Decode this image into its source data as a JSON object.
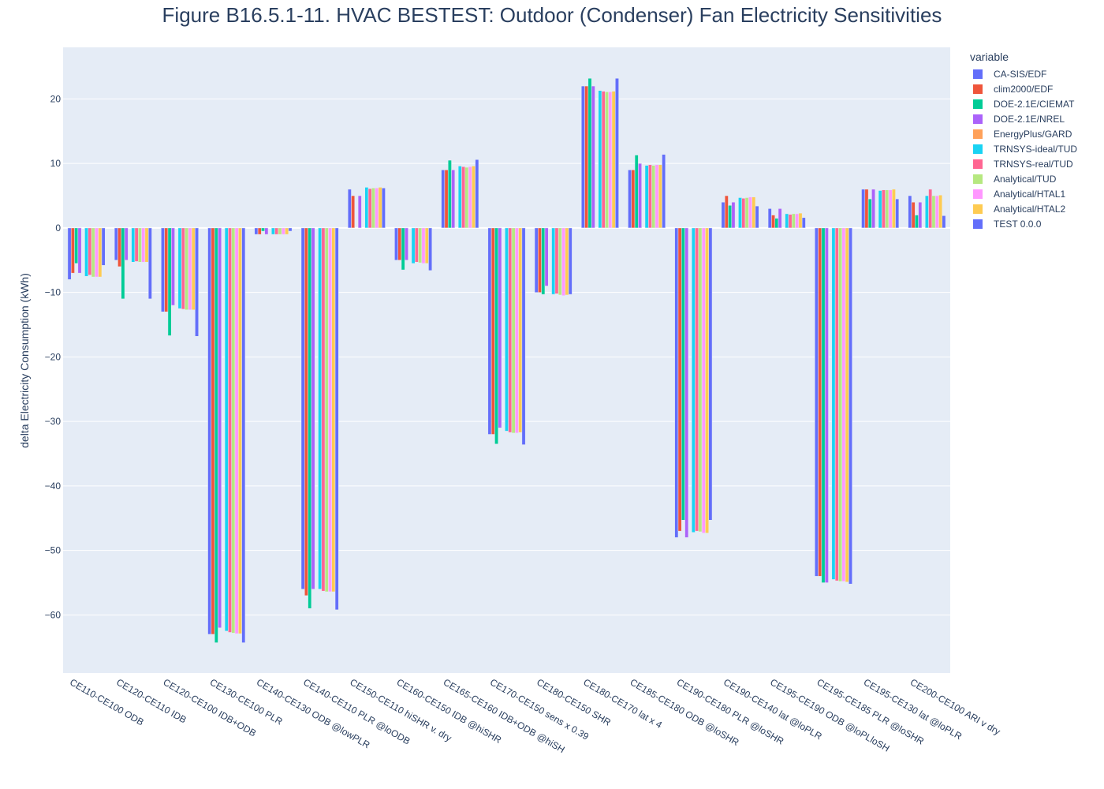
{
  "chart_data": {
    "type": "bar",
    "title": "Figure B16.5.1-11. HVAC BESTEST: Outdoor (Condenser) Fan Electricity Sensitivities",
    "xlabel": "",
    "ylabel": "delta Electricity Consumption  (kWh)",
    "ylim": [
      -69,
      28
    ],
    "yticks": [
      20,
      10,
      0,
      -10,
      -20,
      -30,
      -40,
      -50,
      -60
    ],
    "grid": true,
    "legend_title": "variable",
    "legend_position": "right",
    "categories": [
      "CE110-CE100 ODB",
      "CE120-CE110 IDB",
      "CE120-CE100 IDB+ODB",
      "CE130-CE100 PLR",
      "CE140-CE130 ODB @lowPLR",
      "CE140-CE110 PLR @loODB",
      "CE150-CE110 hiSHR v. dry",
      "CE160-CE150 IDB @hiSHR",
      "CE165-CE160 IDB+ODB @hiSH",
      "CE170-CE150 sens x 0.39",
      "CE180-CE150 SHR",
      "CE180-CE170 lat x 4",
      "CE185-CE180 ODB @loSHR",
      "CE190-CE180 PLR @loSHR",
      "CE190-CE140 lat @loPLR",
      "CE195-CE190 ODB @loPLloSH",
      "CE195-CE185 PLR @loSHR",
      "CE195-CE130 lat @loPLR",
      "CE200-CE100 ARI v dry"
    ],
    "series": [
      {
        "name": "CA-SIS/EDF",
        "color": "#636efa",
        "values": [
          -8.0,
          -5.0,
          -13.0,
          -63.0,
          -1.0,
          -56.0,
          6.0,
          -5.0,
          9.0,
          -32.0,
          -10.0,
          22.0,
          9.0,
          -48.0,
          4.0,
          3.0,
          -54.0,
          6.0,
          5.0
        ]
      },
      {
        "name": "clim2000/EDF",
        "color": "#ef553b",
        "values": [
          -7.0,
          -6.0,
          -13.0,
          -63.0,
          -1.0,
          -57.0,
          5.0,
          -5.0,
          9.0,
          -32.0,
          -10.0,
          22.0,
          9.0,
          -47.0,
          5.0,
          2.0,
          -54.0,
          6.0,
          4.0
        ]
      },
      {
        "name": "DOE-2.1E/CIEMAT",
        "color": "#00cc96",
        "values": [
          -5.5,
          -11.0,
          -16.7,
          -64.3,
          -0.5,
          -59.0,
          0.0,
          -6.5,
          10.5,
          -33.5,
          -10.3,
          23.2,
          11.3,
          -45.3,
          3.5,
          1.5,
          -55.0,
          4.5,
          2.0
        ]
      },
      {
        "name": "DOE-2.1E/NREL",
        "color": "#ab63fa",
        "values": [
          -7.0,
          -5.0,
          -12.0,
          -62.0,
          -1.0,
          -56.0,
          5.0,
          -5.0,
          9.0,
          -31.0,
          -9.0,
          22.0,
          10.0,
          -48.0,
          4.0,
          3.0,
          -55.0,
          6.0,
          4.0
        ]
      },
      {
        "name": "EnergyPlus/GARD",
        "color": "#ffa15a",
        "values": [
          0.0,
          0.0,
          0.0,
          0.0,
          0.0,
          0.0,
          0.0,
          0.0,
          0.0,
          0.0,
          0.0,
          0.0,
          0.0,
          0.0,
          0.0,
          0.0,
          0.0,
          0.0,
          0.0
        ]
      },
      {
        "name": "TRNSYS-ideal/TUD",
        "color": "#19d3f3",
        "values": [
          -7.5,
          -5.3,
          -12.5,
          -62.5,
          -1.0,
          -56.0,
          6.3,
          -5.5,
          9.6,
          -31.5,
          -10.3,
          21.3,
          9.7,
          -47.2,
          4.7,
          2.2,
          -54.5,
          5.8,
          5.0
        ]
      },
      {
        "name": "TRNSYS-real/TUD",
        "color": "#ff6692",
        "values": [
          -7.3,
          -5.2,
          -12.6,
          -62.7,
          -1.0,
          -56.3,
          6.1,
          -5.3,
          9.5,
          -31.7,
          -10.2,
          21.2,
          9.8,
          -47.0,
          4.6,
          2.1,
          -54.7,
          5.9,
          6.0
        ]
      },
      {
        "name": "Analytical/TUD",
        "color": "#b6e880",
        "values": [
          -7.6,
          -5.3,
          -12.7,
          -62.8,
          -1.0,
          -56.4,
          6.2,
          -5.4,
          9.4,
          -31.8,
          -10.4,
          21.1,
          9.7,
          -47.1,
          4.7,
          2.2,
          -54.8,
          5.9,
          5.0
        ]
      },
      {
        "name": "Analytical/HTAL1",
        "color": "#ff97ff",
        "values": [
          -7.6,
          -5.3,
          -12.7,
          -62.9,
          -1.0,
          -56.4,
          6.2,
          -5.5,
          9.5,
          -31.8,
          -10.5,
          21.1,
          9.8,
          -47.3,
          4.8,
          2.2,
          -54.8,
          5.9,
          5.0
        ]
      },
      {
        "name": "Analytical/HTAL2",
        "color": "#fecb52",
        "values": [
          -7.6,
          -5.3,
          -12.7,
          -62.9,
          -1.0,
          -56.4,
          6.3,
          -5.5,
          9.6,
          -31.7,
          -10.4,
          21.2,
          9.8,
          -47.3,
          4.8,
          2.3,
          -54.9,
          6.0,
          5.1
        ]
      },
      {
        "name": "TEST 0.0.0",
        "color": "#636efa",
        "values": [
          -5.8,
          -11.0,
          -16.8,
          -64.3,
          -0.5,
          -59.2,
          6.2,
          -6.6,
          10.6,
          -33.6,
          -10.3,
          23.2,
          11.4,
          -45.3,
          3.4,
          1.6,
          -55.2,
          4.5,
          1.9
        ]
      }
    ]
  }
}
